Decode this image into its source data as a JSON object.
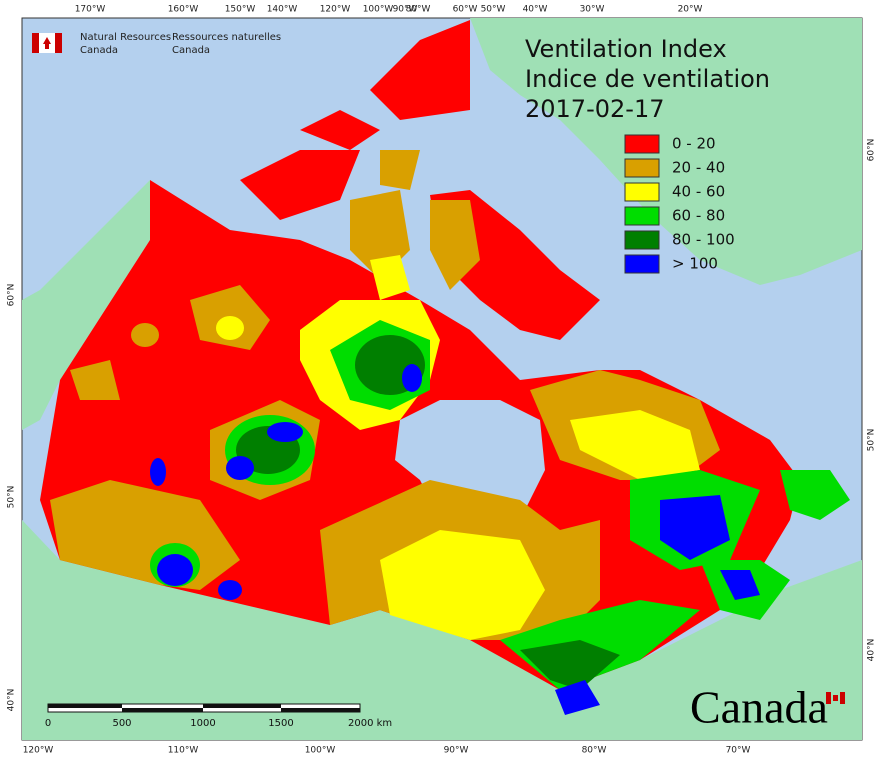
{
  "header": {
    "english": [
      "Natural Resources",
      "Canada"
    ],
    "french": [
      "Ressources naturelles",
      "Canada"
    ]
  },
  "title": [
    "Ventilation Index",
    "Indice de ventilation",
    "2017-02-17"
  ],
  "legend": [
    {
      "label": "0 - 20",
      "color": "#ff0000"
    },
    {
      "label": "20 - 40",
      "color": "#d9a000"
    },
    {
      "label": "40 - 60",
      "color": "#ffff00"
    },
    {
      "label": "60 - 80",
      "color": "#00dd00"
    },
    {
      "label": "80 - 100",
      "color": "#007f00"
    },
    {
      "label": "> 100",
      "color": "#0000ff"
    }
  ],
  "graticule": {
    "top": [
      "170°W",
      "160°W",
      "150°W",
      "140°W",
      "120°W",
      "100°W",
      "90°W",
      "80°W",
      "60°W",
      "50°W",
      "40°W",
      "30°W",
      "20°W"
    ],
    "bottom": [
      "120°W",
      "110°W",
      "100°W",
      "90°W",
      "80°W",
      "70°W"
    ],
    "left": [
      "60°N",
      "50°N",
      "40°N"
    ],
    "right": [
      "60°N",
      "50°N",
      "40°N"
    ]
  },
  "scale_bar": [
    "0",
    "500",
    "1000",
    "1500",
    "2000 km"
  ],
  "wordmark": "Canada"
}
